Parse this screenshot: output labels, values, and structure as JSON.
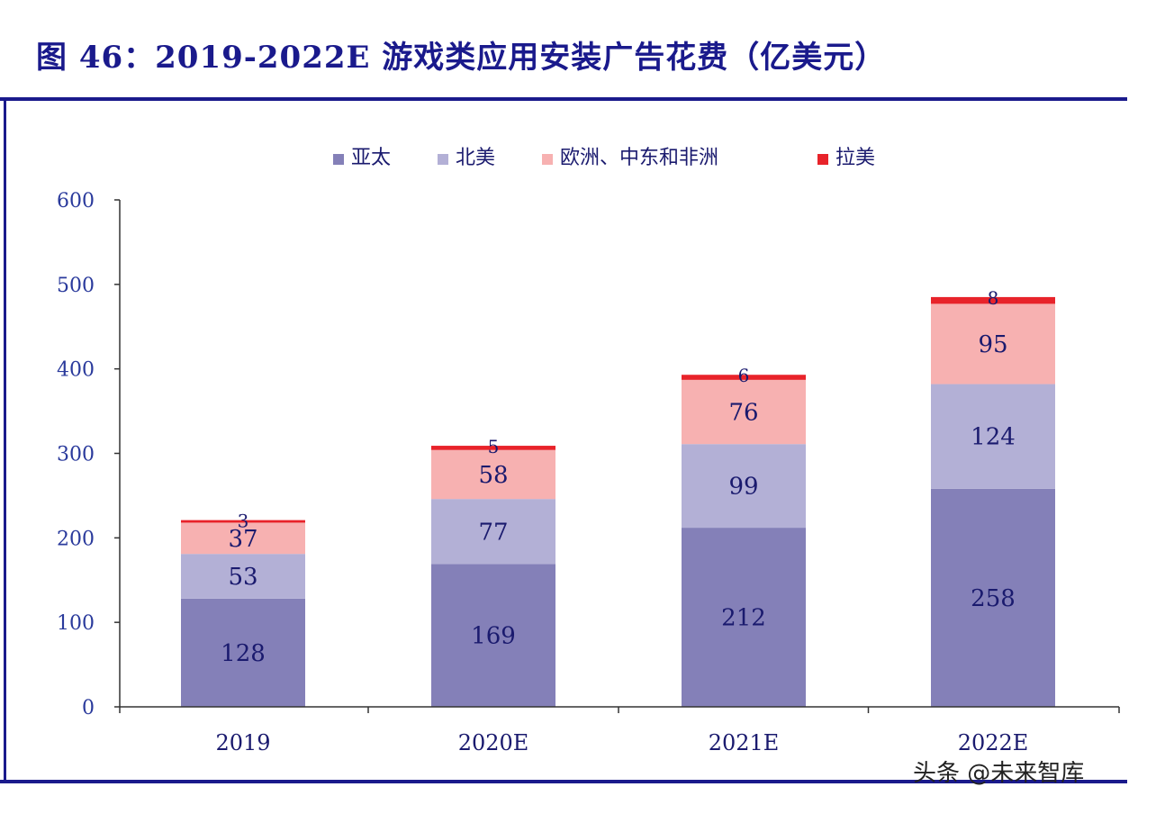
{
  "title": "图 46：2019-2022E 游戏类应用安装广告花费（亿美元）",
  "watermark": "头条 @未来智库",
  "chart_data": {
    "type": "bar",
    "stacked": true,
    "categories": [
      "2019",
      "2020E",
      "2021E",
      "2022E"
    ],
    "series": [
      {
        "name": "亚太",
        "color": "#8480b8",
        "values": [
          128,
          169,
          212,
          258
        ]
      },
      {
        "name": "北美",
        "color": "#b3b0d6",
        "values": [
          53,
          77,
          99,
          124
        ]
      },
      {
        "name": "欧洲、中东和非洲",
        "color": "#f7b1b1",
        "values": [
          37,
          58,
          76,
          95
        ]
      },
      {
        "name": "拉美",
        "color": "#e8232a",
        "values": [
          3,
          5,
          6,
          8
        ]
      }
    ],
    "yticks": [
      "0",
      "100",
      "200",
      "300",
      "400",
      "500",
      "600"
    ],
    "ylim": [
      0,
      600
    ],
    "xlabel": "",
    "ylabel": "",
    "grid": false,
    "legend_position": "top-center",
    "axis_color": "#333333",
    "label_color": "#1a1a6e",
    "tick_label_color": "#2a3a9c"
  }
}
